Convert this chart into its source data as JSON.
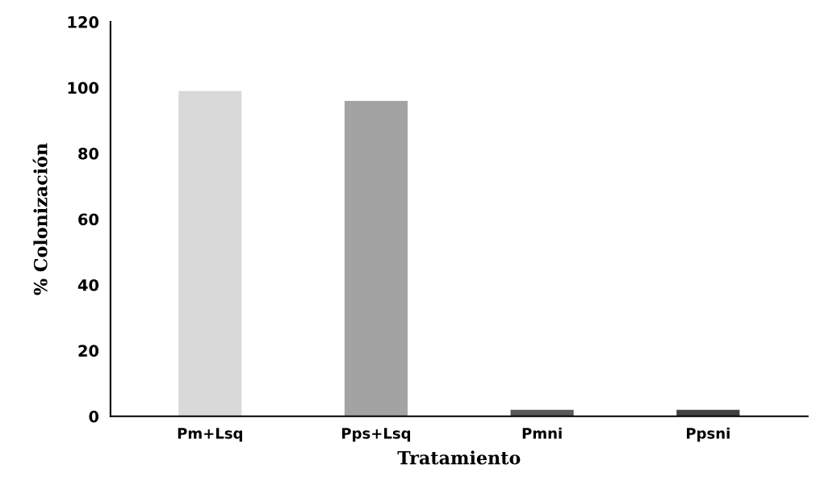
{
  "chart_data": {
    "type": "bar",
    "xlabel": "Tratamiento",
    "ylabel": "% Colonización",
    "categories": [
      "Pm+Lsq",
      "Pps+Lsq",
      "Pmni",
      "Ppsni"
    ],
    "values": [
      99,
      96,
      2,
      2
    ],
    "colors": [
      "#d9d9d9",
      "#a3a3a3",
      "#595959",
      "#404040"
    ],
    "ylim": [
      0,
      120
    ],
    "yticks": [
      0,
      20,
      40,
      60,
      80,
      100,
      120
    ],
    "grid": false,
    "legend": false
  }
}
